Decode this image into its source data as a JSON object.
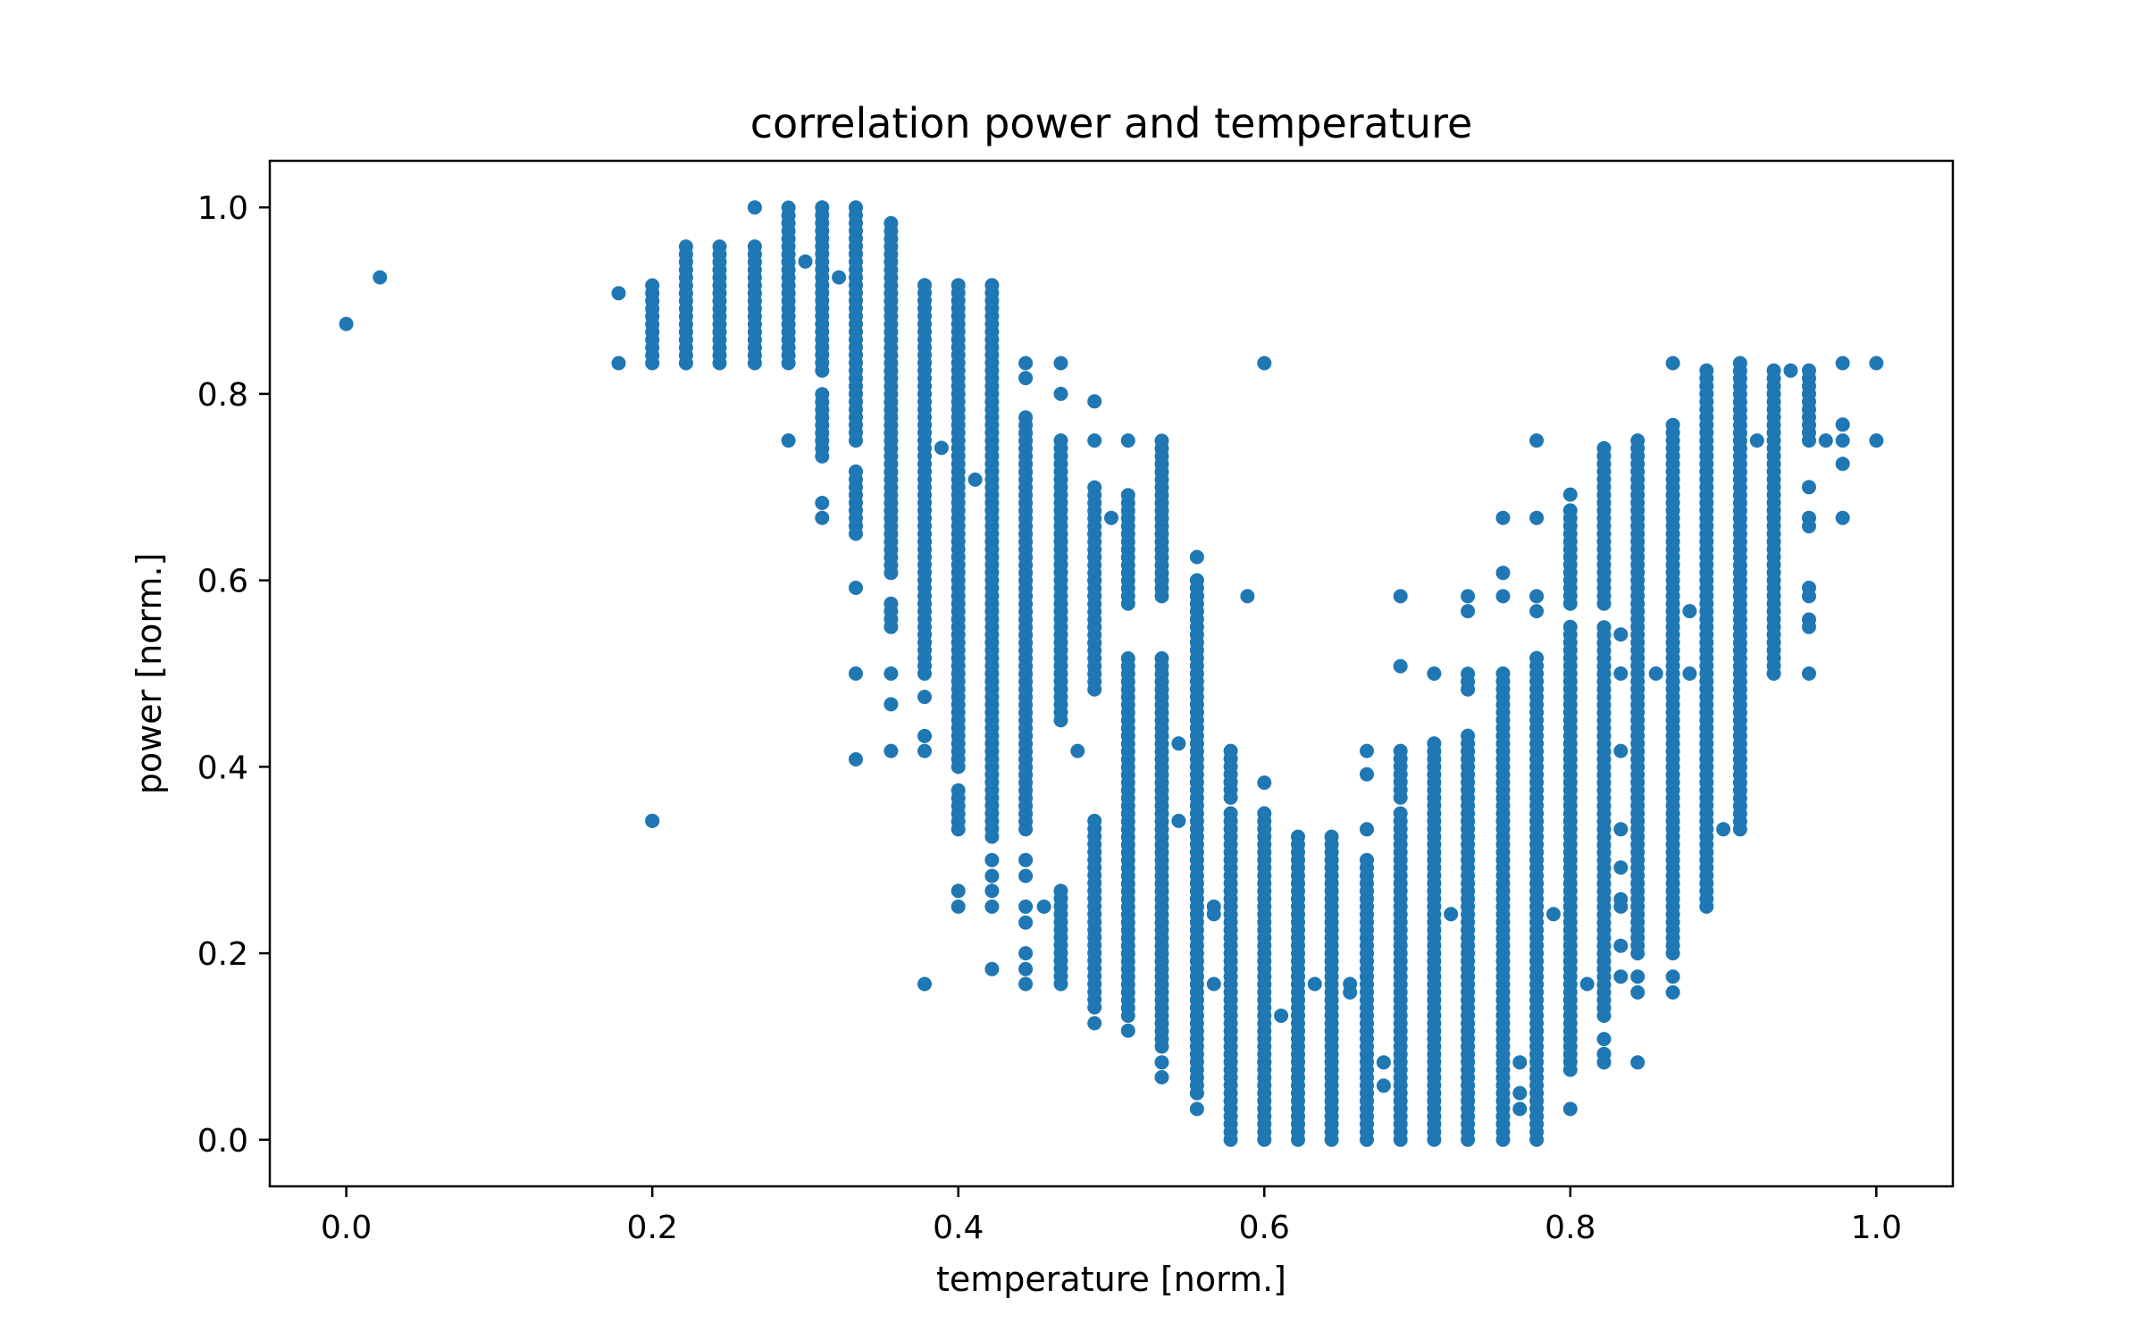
{
  "chart_data": {
    "type": "scatter",
    "title": "correlation power and temperature",
    "xlabel": "temperature [norm.]",
    "ylabel": "power [norm.]",
    "xlim": [
      -0.05,
      1.05
    ],
    "ylim": [
      -0.05,
      1.05
    ],
    "xticks": [
      0.0,
      0.2,
      0.4,
      0.6,
      0.8,
      1.0
    ],
    "yticks": [
      0.0,
      0.2,
      0.4,
      0.6,
      0.8,
      1.0
    ],
    "xtick_labels": [
      "0.0",
      "0.2",
      "0.4",
      "0.6",
      "0.8",
      "1.0"
    ],
    "ytick_labels": [
      "0.0",
      "0.2",
      "0.4",
      "0.6",
      "0.8",
      "1.0"
    ],
    "grid": false,
    "marker_color": "#1f77b4",
    "columns": [
      {
        "x": 0.2,
        "ranges": [
          [
            0.833,
            0.917
          ]
        ],
        "extra": [
          0.342
        ]
      },
      {
        "x": 0.222,
        "ranges": [
          [
            0.833,
            0.958
          ]
        ],
        "extra": []
      },
      {
        "x": 0.244,
        "ranges": [
          [
            0.833,
            0.958
          ]
        ],
        "extra": []
      },
      {
        "x": 0.267,
        "ranges": [
          [
            0.833,
            0.965
          ]
        ],
        "extra": [
          1.0
        ]
      },
      {
        "x": 0.289,
        "ranges": [
          [
            0.833,
            1.0
          ]
        ],
        "extra": [
          0.75
        ]
      },
      {
        "x": 0.311,
        "ranges": [
          [
            0.825,
            1.0
          ],
          [
            0.733,
            0.8
          ]
        ],
        "extra": [
          0.667,
          0.683
        ]
      },
      {
        "x": 0.333,
        "ranges": [
          [
            0.75,
            1.0
          ],
          [
            0.65,
            0.72
          ]
        ],
        "extra": [
          0.592,
          0.5,
          0.408
        ]
      },
      {
        "x": 0.356,
        "ranges": [
          [
            0.608,
            0.983
          ],
          [
            0.55,
            0.583
          ]
        ],
        "extra": [
          0.5,
          0.467,
          0.417
        ]
      },
      {
        "x": 0.378,
        "ranges": [
          [
            0.5,
            0.917
          ]
        ],
        "extra": [
          0.475,
          0.433,
          0.417,
          0.167
        ]
      },
      {
        "x": 0.4,
        "ranges": [
          [
            0.4,
            0.917
          ],
          [
            0.333,
            0.375
          ]
        ],
        "extra": [
          0.267,
          0.25
        ]
      },
      {
        "x": 0.422,
        "ranges": [
          [
            0.325,
            0.917
          ]
        ],
        "extra": [
          0.3,
          0.283,
          0.267,
          0.25,
          0.183
        ]
      },
      {
        "x": 0.444,
        "ranges": [
          [
            0.333,
            0.775
          ]
        ],
        "extra": [
          0.833,
          0.817,
          0.3,
          0.283,
          0.25,
          0.233,
          0.2,
          0.183,
          0.167
        ]
      },
      {
        "x": 0.467,
        "ranges": [
          [
            0.45,
            0.75
          ],
          [
            0.167,
            0.275
          ]
        ],
        "extra": [
          0.833,
          0.8,
          0.642,
          0.617
        ]
      },
      {
        "x": 0.489,
        "ranges": [
          [
            0.483,
            0.7
          ],
          [
            0.142,
            0.35
          ]
        ],
        "extra": [
          0.792,
          0.75,
          0.65,
          0.625,
          0.6,
          0.583,
          0.55,
          0.533,
          0.125
        ]
      },
      {
        "x": 0.511,
        "ranges": [
          [
            0.133,
            0.517
          ],
          [
            0.583,
            0.692
          ]
        ],
        "extra": [
          0.75,
          0.575,
          0.117
        ]
      },
      {
        "x": 0.533,
        "ranges": [
          [
            0.108,
            0.517
          ],
          [
            0.583,
            0.75
          ]
        ],
        "extra": [
          0.6,
          0.1,
          0.083,
          0.067
        ]
      },
      {
        "x": 0.556,
        "ranges": [
          [
            0.05,
            0.6
          ]
        ],
        "extra": [
          0.625,
          0.583,
          0.05,
          0.033
        ]
      },
      {
        "x": 0.578,
        "ranges": [
          [
            0.0,
            0.35
          ],
          [
            0.367,
            0.417
          ]
        ],
        "extra": [
          0.383
        ]
      },
      {
        "x": 0.6,
        "ranges": [
          [
            0.0,
            0.35
          ]
        ],
        "extra": [
          0.383,
          0.083
        ]
      },
      {
        "x": 0.622,
        "ranges": [
          [
            0.0,
            0.333
          ]
        ],
        "extra": []
      },
      {
        "x": 0.644,
        "ranges": [
          [
            0.0,
            0.333
          ]
        ],
        "extra": []
      },
      {
        "x": 0.667,
        "ranges": [
          [
            0.0,
            0.3
          ]
        ],
        "extra": [
          0.417,
          0.392,
          0.333
        ]
      },
      {
        "x": 0.689,
        "ranges": [
          [
            0.0,
            0.35
          ],
          [
            0.367,
            0.425
          ]
        ],
        "extra": [
          0.583,
          0.508
        ]
      },
      {
        "x": 0.711,
        "ranges": [
          [
            0.0,
            0.433
          ]
        ],
        "extra": [
          0.5
        ]
      },
      {
        "x": 0.733,
        "ranges": [
          [
            0.0,
            0.44
          ],
          [
            0.483,
            0.5
          ]
        ],
        "extra": [
          0.583,
          0.567
        ]
      },
      {
        "x": 0.756,
        "ranges": [
          [
            0.0,
            0.5
          ]
        ],
        "extra": [
          0.583,
          0.608,
          0.667
        ]
      },
      {
        "x": 0.778,
        "ranges": [
          [
            0.0,
            0.517
          ]
        ],
        "extra": [
          0.75,
          0.667,
          0.583,
          0.567
        ]
      },
      {
        "x": 0.8,
        "ranges": [
          [
            0.075,
            0.55
          ],
          [
            0.575,
            0.675
          ]
        ],
        "extra": [
          0.692,
          0.033
        ]
      },
      {
        "x": 0.822,
        "ranges": [
          [
            0.133,
            0.55
          ],
          [
            0.575,
            0.742
          ]
        ],
        "extra": [
          0.108,
          0.092,
          0.083
        ]
      },
      {
        "x": 0.844,
        "ranges": [
          [
            0.2,
            0.75
          ]
        ],
        "extra": [
          0.175,
          0.158,
          0.083
        ]
      },
      {
        "x": 0.867,
        "ranges": [
          [
            0.2,
            0.767
          ]
        ],
        "extra": [
          0.833,
          0.175,
          0.158
        ]
      },
      {
        "x": 0.889,
        "ranges": [
          [
            0.25,
            0.833
          ]
        ],
        "extra": []
      },
      {
        "x": 0.911,
        "ranges": [
          [
            0.333,
            0.833
          ]
        ],
        "extra": []
      },
      {
        "x": 0.933,
        "ranges": [
          [
            0.5,
            0.833
          ]
        ],
        "extra": [
          0.667
        ]
      },
      {
        "x": 0.956,
        "ranges": [
          [
            0.75,
            0.833
          ]
        ],
        "extra": [
          0.7,
          0.667,
          0.658,
          0.592,
          0.583,
          0.558,
          0.55,
          0.5
        ]
      }
    ],
    "scattered_points": [
      [
        0.0,
        0.875
      ],
      [
        0.022,
        0.925
      ],
      [
        0.178,
        0.908
      ],
      [
        0.178,
        0.833
      ],
      [
        0.2,
        0.342
      ],
      [
        0.3,
        0.942
      ],
      [
        0.322,
        0.925
      ],
      [
        0.389,
        0.742
      ],
      [
        0.411,
        0.708
      ],
      [
        0.456,
        0.25
      ],
      [
        0.478,
        0.417
      ],
      [
        0.5,
        0.667
      ],
      [
        0.544,
        0.425
      ],
      [
        0.544,
        0.342
      ],
      [
        0.567,
        0.25
      ],
      [
        0.567,
        0.242
      ],
      [
        0.567,
        0.167
      ],
      [
        0.589,
        0.583
      ],
      [
        0.6,
        0.833
      ],
      [
        0.611,
        0.133
      ],
      [
        0.633,
        0.167
      ],
      [
        0.656,
        0.167
      ],
      [
        0.656,
        0.158
      ],
      [
        0.678,
        0.083
      ],
      [
        0.678,
        0.058
      ],
      [
        0.722,
        0.242
      ],
      [
        0.767,
        0.083
      ],
      [
        0.767,
        0.05
      ],
      [
        0.767,
        0.033
      ],
      [
        0.789,
        0.242
      ],
      [
        0.811,
        0.167
      ],
      [
        0.833,
        0.542
      ],
      [
        0.833,
        0.5
      ],
      [
        0.833,
        0.417
      ],
      [
        0.833,
        0.333
      ],
      [
        0.833,
        0.292
      ],
      [
        0.833,
        0.258
      ],
      [
        0.833,
        0.25
      ],
      [
        0.833,
        0.208
      ],
      [
        0.833,
        0.175
      ],
      [
        0.856,
        0.5
      ],
      [
        0.878,
        0.567
      ],
      [
        0.878,
        0.5
      ],
      [
        0.9,
        0.333
      ],
      [
        0.922,
        0.75
      ],
      [
        0.944,
        0.825
      ],
      [
        0.967,
        0.75
      ],
      [
        0.978,
        0.833
      ],
      [
        0.978,
        0.767
      ],
      [
        0.978,
        0.75
      ],
      [
        0.978,
        0.725
      ],
      [
        0.978,
        0.667
      ],
      [
        1.0,
        0.833
      ],
      [
        1.0,
        0.75
      ]
    ]
  }
}
